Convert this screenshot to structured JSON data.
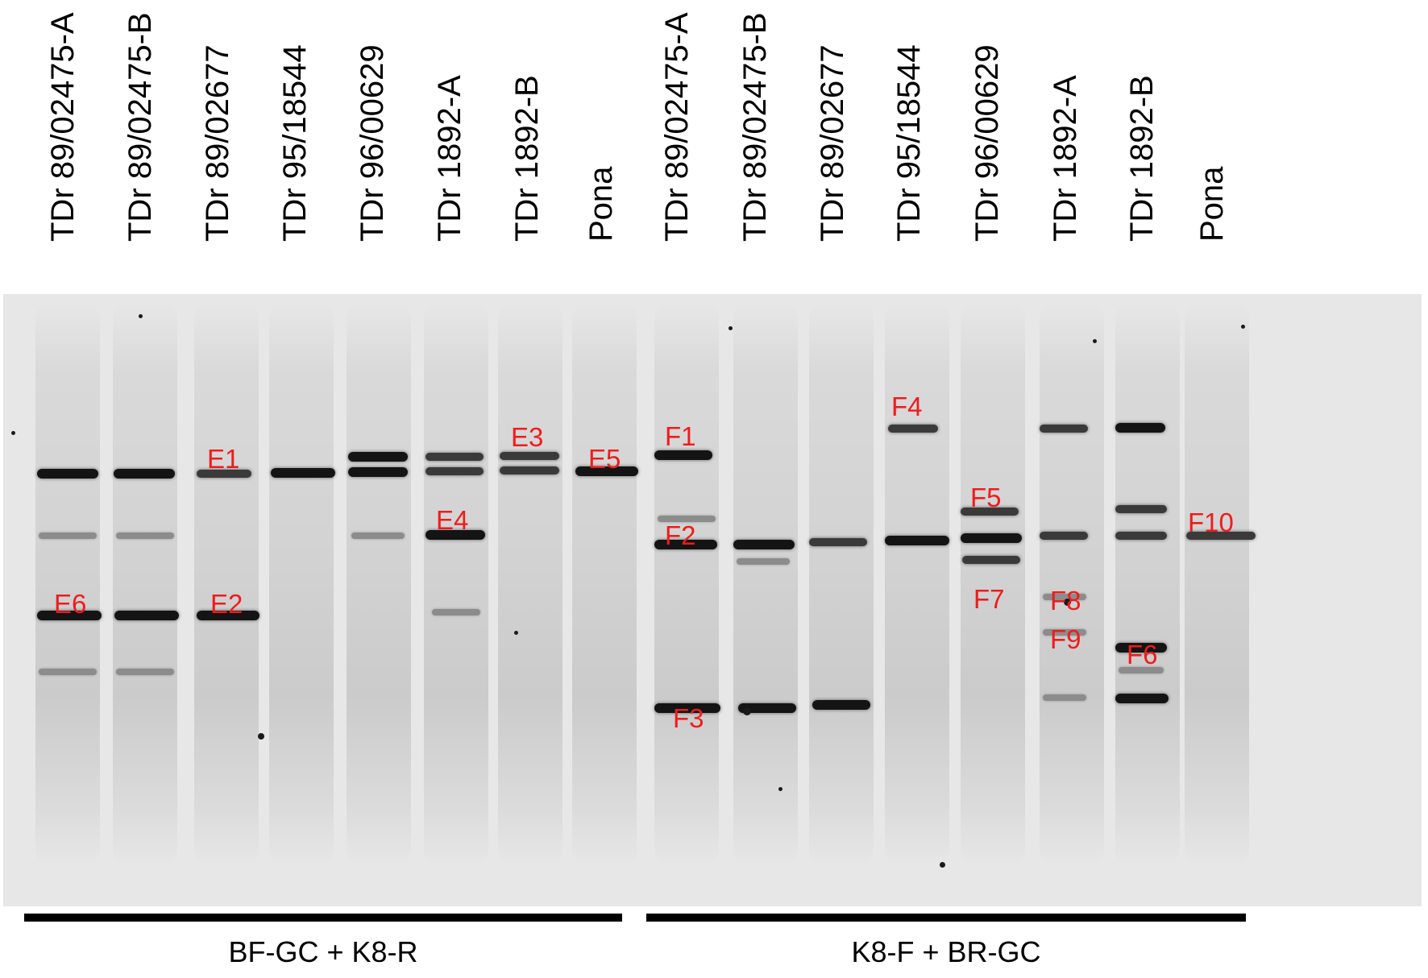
{
  "lanes": [
    {
      "label": "TDr 89/02475-A",
      "group": "primer_set_1"
    },
    {
      "label": "TDr 89/02475-B",
      "group": "primer_set_1"
    },
    {
      "label": "TDr 89/02677",
      "group": "primer_set_1"
    },
    {
      "label": "TDr 95/18544",
      "group": "primer_set_1"
    },
    {
      "label": "TDr 96/00629",
      "group": "primer_set_1"
    },
    {
      "label": "TDr 1892-A",
      "group": "primer_set_1"
    },
    {
      "label": "TDr 1892-B",
      "group": "primer_set_1"
    },
    {
      "label": "Pona",
      "group": "primer_set_1"
    },
    {
      "label": "TDr 89/02475-A",
      "group": "primer_set_2"
    },
    {
      "label": "TDr 89/02475-B",
      "group": "primer_set_2"
    },
    {
      "label": "TDr 89/02677",
      "group": "primer_set_2"
    },
    {
      "label": "TDr 95/18544",
      "group": "primer_set_2"
    },
    {
      "label": "TDr 96/00629",
      "group": "primer_set_2"
    },
    {
      "label": "TDr 1892-A",
      "group": "primer_set_2"
    },
    {
      "label": "TDr 1892-B",
      "group": "primer_set_2"
    },
    {
      "label": "Pona",
      "group": "primer_set_2"
    }
  ],
  "primer_groups": {
    "primer_set_1": "BF-GC + K8-R",
    "primer_set_2": "K8-F + BR-GC"
  },
  "band_labels": [
    "E1",
    "E2",
    "E3",
    "E4",
    "E5",
    "E6",
    "F1",
    "F2",
    "F3",
    "F4",
    "F5",
    "F6",
    "F7",
    "F8",
    "F9",
    "F10"
  ],
  "colors": {
    "gel_background": "#e7e7e7",
    "band": "#141414",
    "band_label": "#ee1c1c",
    "text": "#000000"
  }
}
